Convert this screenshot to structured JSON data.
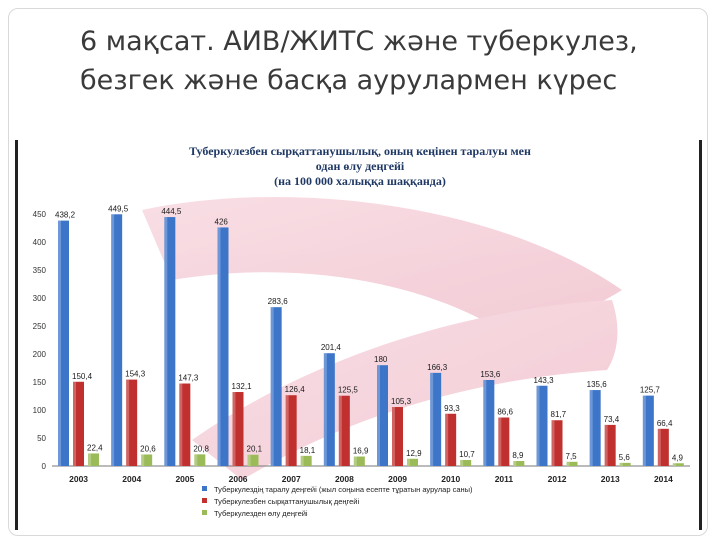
{
  "slide": {
    "title_line1": "6 мақсат. АИВ/ЖИТС және туберкулез,",
    "title_line2": "безгек және басқа аурулармен күрес"
  },
  "chart_data": {
    "type": "bar",
    "title_line1": "Туберкулезбен сырқаттанушылық, оның кеңінен таралуы мен",
    "title_line2": "одан өлу деңгейі",
    "subtitle": "(на 100 000 халыққа шаққанда)",
    "categories": [
      "2003",
      "2004",
      "2005",
      "2006",
      "2007",
      "2008",
      "2009",
      "2010",
      "2011",
      "2012",
      "2013",
      "2014"
    ],
    "ylim": [
      0,
      450
    ],
    "yticks": [
      0,
      50,
      100,
      150,
      200,
      250,
      300,
      350,
      400,
      450
    ],
    "grid": false,
    "legend_position": "bottom",
    "series": [
      {
        "name": "Туберкулездің таралу деңгейі (жыл соңына есепте тұратын аурулар саны)",
        "color": "#3d75c8",
        "values": [
          438.2,
          449.5,
          444.5,
          426,
          283.6,
          201.4,
          180,
          166.3,
          153.6,
          143.3,
          135.6,
          125.7
        ],
        "labels": [
          "438,2",
          "449,5",
          "444,5",
          "426",
          "283,6",
          "201,4",
          "180",
          "166,3",
          "153,6",
          "143,3",
          "135,6",
          "125,7"
        ]
      },
      {
        "name": "Туберкулезбен сырқаттанушылық деңгейі",
        "color": "#c0302e",
        "values": [
          150.4,
          154.3,
          147.3,
          132.1,
          126.4,
          125.5,
          105.3,
          93.3,
          86.6,
          81.7,
          73.4,
          66.4
        ],
        "labels": [
          "150,4",
          "154,3",
          "147,3",
          "132,1",
          "126,4",
          "125,5",
          "105,3",
          "93,3",
          "86,6",
          "81,7",
          "73,4",
          "66,4"
        ]
      },
      {
        "name": "Туберкулезден өлу деңгейі",
        "color": "#9bbb59",
        "values": [
          22.4,
          20.6,
          20.8,
          20.1,
          18.1,
          16.9,
          12.9,
          10.7,
          8.9,
          7.5,
          5.6,
          4.9
        ],
        "labels": [
          "22,4",
          "20,6",
          "20,8",
          "20,1",
          "18,1",
          "16,9",
          "12,9",
          "10,7",
          "8,9",
          "7,5",
          "5,6",
          "4,9"
        ]
      }
    ]
  }
}
